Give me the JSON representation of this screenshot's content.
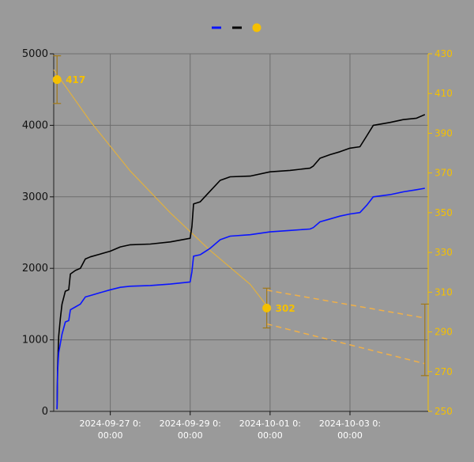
{
  "colors": {
    "background": "#9a9a9a",
    "grid": "#6e6e6e",
    "blue": "#0a14ff",
    "black": "#000000",
    "gold": "#f5c000",
    "curve": "#e0b040",
    "dashed": "#f0b048",
    "errorbar": "#a07818"
  },
  "chart_data": {
    "type": "line",
    "legend_position": "top-center",
    "grid": true,
    "x_ticks": [
      {
        "date": "2024-09-27",
        "lines": [
          "2024-09-27 0:",
          "00:00"
        ]
      },
      {
        "date": "2024-09-29",
        "lines": [
          "2024-09-29 0:",
          "00:00"
        ]
      },
      {
        "date": "2024-10-01",
        "lines": [
          "2024-10-01 0:",
          "00:00"
        ]
      },
      {
        "date": "2024-10-03",
        "lines": [
          "2024-10-03 0:",
          "00:00"
        ]
      }
    ],
    "xlim": [
      "2024-09-25 14:00",
      "2024-10-04 23:00"
    ],
    "y_left": {
      "ylim": [
        0,
        5000
      ],
      "ticks": [
        "0",
        "1000",
        "2000",
        "3000",
        "4000",
        "5000"
      ]
    },
    "y_right": {
      "ylim": [
        250,
        430
      ],
      "ticks": [
        "250",
        "270",
        "290",
        "310",
        "330",
        "350",
        "370",
        "390",
        "410",
        "430"
      ]
    },
    "series": [
      {
        "key": "blue",
        "axis": "left",
        "color": "#0a14ff",
        "points": [
          [
            "2024-09-25 16:00",
            30
          ],
          [
            "2024-09-25 16:20",
            560
          ],
          [
            "2024-09-25 17:00",
            820
          ],
          [
            "2024-09-25 18:00",
            950
          ],
          [
            "2024-09-25 19:00",
            1080
          ],
          [
            "2024-09-25 21:00",
            1250
          ],
          [
            "2024-09-25 23:00",
            1270
          ],
          [
            "2024-09-26 00:00",
            1420
          ],
          [
            "2024-09-26 03:00",
            1460
          ],
          [
            "2024-09-26 06:00",
            1500
          ],
          [
            "2024-09-26 09:00",
            1600
          ],
          [
            "2024-09-26 12:00",
            1620
          ],
          [
            "2024-09-26 18:00",
            1660
          ],
          [
            "2024-09-27 00:00",
            1700
          ],
          [
            "2024-09-27 06:00",
            1735
          ],
          [
            "2024-09-27 12:00",
            1750
          ],
          [
            "2024-09-28 00:00",
            1760
          ],
          [
            "2024-09-28 12:00",
            1780
          ],
          [
            "2024-09-29 00:00",
            1810
          ],
          [
            "2024-09-29 01:00",
            1950
          ],
          [
            "2024-09-29 02:00",
            2170
          ],
          [
            "2024-09-29 06:00",
            2190
          ],
          [
            "2024-09-29 12:00",
            2280
          ],
          [
            "2024-09-29 18:00",
            2400
          ],
          [
            "2024-09-30 00:00",
            2450
          ],
          [
            "2024-09-30 12:00",
            2470
          ],
          [
            "2024-10-01 00:00",
            2510
          ],
          [
            "2024-10-01 12:00",
            2530
          ],
          [
            "2024-10-02 00:00",
            2550
          ],
          [
            "2024-10-02 02:00",
            2570
          ],
          [
            "2024-10-02 06:00",
            2650
          ],
          [
            "2024-10-02 12:00",
            2690
          ],
          [
            "2024-10-02 18:00",
            2730
          ],
          [
            "2024-10-03 00:00",
            2760
          ],
          [
            "2024-10-03 06:00",
            2780
          ],
          [
            "2024-10-03 10:00",
            2880
          ],
          [
            "2024-10-03 14:00",
            3000
          ],
          [
            "2024-10-04 00:00",
            3030
          ],
          [
            "2024-10-04 08:00",
            3070
          ],
          [
            "2024-10-04 16:00",
            3100
          ],
          [
            "2024-10-04 21:00",
            3120
          ]
        ]
      },
      {
        "key": "black",
        "axis": "left",
        "color": "#000000",
        "points": [
          [
            "2024-09-25 16:00",
            30
          ],
          [
            "2024-09-25 16:20",
            600
          ],
          [
            "2024-09-25 17:00",
            1050
          ],
          [
            "2024-09-25 18:00",
            1300
          ],
          [
            "2024-09-25 19:00",
            1500
          ],
          [
            "2024-09-25 21:00",
            1680
          ],
          [
            "2024-09-25 23:00",
            1700
          ],
          [
            "2024-09-26 00:00",
            1920
          ],
          [
            "2024-09-26 03:00",
            1970
          ],
          [
            "2024-09-26 06:00",
            2000
          ],
          [
            "2024-09-26 09:00",
            2130
          ],
          [
            "2024-09-26 12:00",
            2160
          ],
          [
            "2024-09-26 18:00",
            2200
          ],
          [
            "2024-09-27 00:00",
            2240
          ],
          [
            "2024-09-27 06:00",
            2300
          ],
          [
            "2024-09-27 12:00",
            2330
          ],
          [
            "2024-09-28 00:00",
            2340
          ],
          [
            "2024-09-28 12:00",
            2370
          ],
          [
            "2024-09-29 00:00",
            2420
          ],
          [
            "2024-09-29 01:00",
            2580
          ],
          [
            "2024-09-29 02:00",
            2900
          ],
          [
            "2024-09-29 06:00",
            2930
          ],
          [
            "2024-09-29 12:00",
            3080
          ],
          [
            "2024-09-29 18:00",
            3230
          ],
          [
            "2024-09-30 00:00",
            3280
          ],
          [
            "2024-09-30 12:00",
            3290
          ],
          [
            "2024-10-01 00:00",
            3350
          ],
          [
            "2024-10-01 12:00",
            3370
          ],
          [
            "2024-10-02 00:00",
            3400
          ],
          [
            "2024-10-02 02:00",
            3430
          ],
          [
            "2024-10-02 06:00",
            3540
          ],
          [
            "2024-10-02 12:00",
            3590
          ],
          [
            "2024-10-02 18:00",
            3630
          ],
          [
            "2024-10-03 00:00",
            3680
          ],
          [
            "2024-10-03 06:00",
            3700
          ],
          [
            "2024-10-03 10:00",
            3850
          ],
          [
            "2024-10-03 14:00",
            4000
          ],
          [
            "2024-10-04 00:00",
            4040
          ],
          [
            "2024-10-04 08:00",
            4080
          ],
          [
            "2024-10-04 16:00",
            4100
          ],
          [
            "2024-10-04 21:00",
            4150
          ]
        ]
      },
      {
        "key": "gold",
        "axis": "right",
        "color": "#f5c000",
        "fit_curve": [
          [
            "2024-09-25 14:00",
            422
          ],
          [
            "2024-09-26 12:00",
            396
          ],
          [
            "2024-09-27 12:00",
            371
          ],
          [
            "2024-09-28 12:00",
            350
          ],
          [
            "2024-09-29 12:00",
            331
          ],
          [
            "2024-09-30 12:00",
            314
          ],
          [
            "2024-10-01 00:00",
            301
          ]
        ],
        "markers": [
          {
            "x": "2024-09-25 16:00",
            "y": 417,
            "label": "417",
            "err_low": 405,
            "err_high": 429
          },
          {
            "x": "2024-09-30 22:00",
            "y": 302,
            "label": "302",
            "err_low": 292,
            "err_high": 312
          }
        ],
        "forecast_upper": [
          [
            "2024-09-30 22:00",
            311
          ],
          [
            "2024-10-04 21:00",
            297
          ]
        ],
        "forecast_lower": [
          [
            "2024-09-30 22:00",
            294
          ],
          [
            "2024-10-04 21:00",
            274
          ]
        ],
        "end_errorbar": {
          "x": "2024-10-04 21:00",
          "low": 268,
          "high": 304
        }
      }
    ]
  }
}
